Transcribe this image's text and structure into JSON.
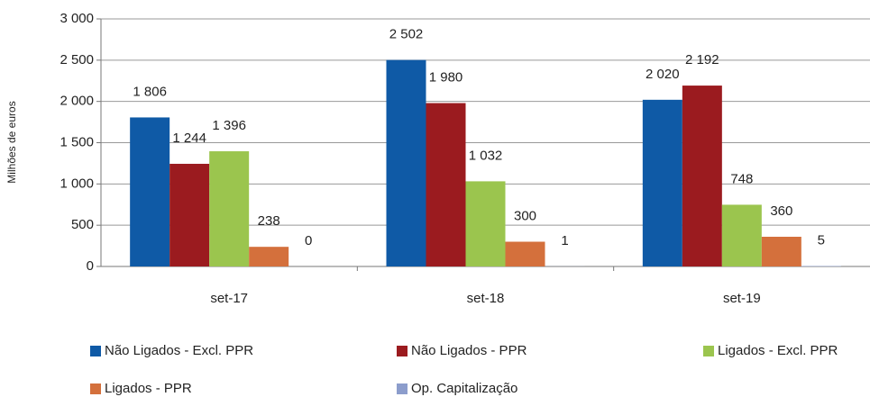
{
  "chart_data": {
    "type": "bar",
    "y_axis_label": "Milhões de euros",
    "categories": [
      "set-17",
      "set-18",
      "set-19"
    ],
    "series": [
      {
        "name": "Não Ligados - Excl. PPR",
        "color": "#0f5aa6",
        "values": [
          1806,
          2502,
          2020
        ],
        "value_labels": [
          "1 806",
          "2 502",
          "2 020"
        ]
      },
      {
        "name": "Não Ligados - PPR",
        "color": "#9b1b1f",
        "values": [
          1244,
          1980,
          2192
        ],
        "value_labels": [
          "1 244",
          "1 980",
          "2 192"
        ]
      },
      {
        "name": "Ligados - Excl. PPR",
        "color": "#9bc54e",
        "values": [
          1396,
          1032,
          748
        ],
        "value_labels": [
          "1 396",
          "1 032",
          "748"
        ]
      },
      {
        "name": "Ligados - PPR",
        "color": "#d4703c",
        "values": [
          238,
          300,
          360
        ]
      },
      {
        "name": "Op. Capitalização",
        "color": "#8c9dcc",
        "values": [
          0,
          1,
          5
        ]
      }
    ],
    "ylim": [
      0,
      3000
    ],
    "yticks": [
      0,
      500,
      {
        "value": 1000,
        "label": "1 000"
      },
      {
        "value": 1500,
        "label": "1 500"
      },
      {
        "value": 2000,
        "label": "2 000"
      },
      {
        "value": 2500,
        "label": "2 500"
      },
      {
        "value": 3000,
        "label": "3 000"
      }
    ],
    "grid": true,
    "legend": "bottom"
  }
}
